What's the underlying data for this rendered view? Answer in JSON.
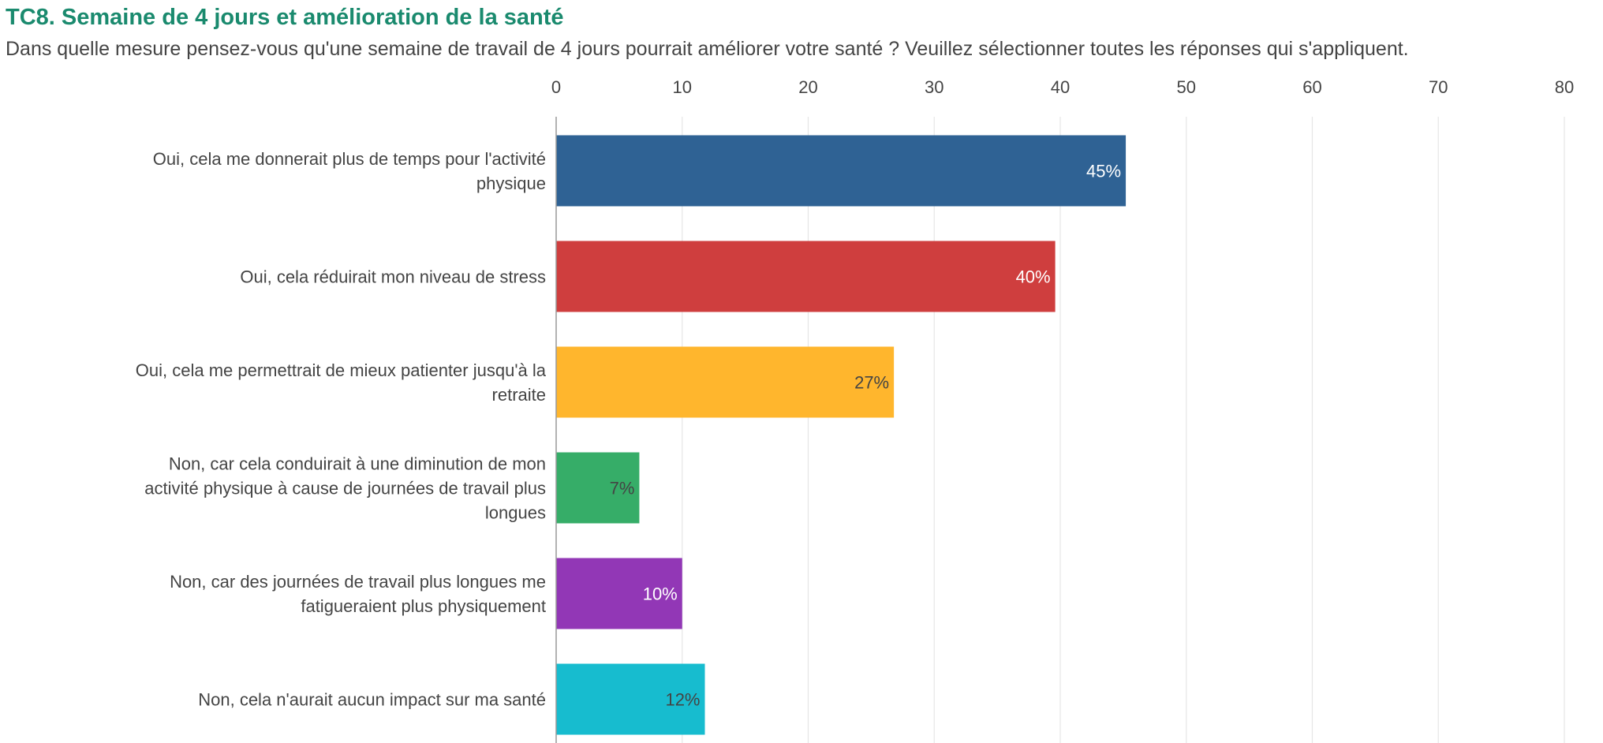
{
  "title": "TC8. Semaine de 4 jours et amélioration de la santé",
  "subtitle": "Dans quelle mesure pensez-vous qu'une semaine de travail de 4 jours pourrait améliorer votre santé ? Veuillez sélectionner toutes les réponses qui s'appliquent.",
  "chart_data": {
    "type": "bar",
    "orientation": "horizontal",
    "title": "TC8. Semaine de 4 jours et amélioration de la santé",
    "subtitle": "Dans quelle mesure pensez-vous qu'une semaine de travail de 4 jours pourrait améliorer votre santé ? Veuillez sélectionner toutes les réponses qui s'appliquent.",
    "xlim": [
      0,
      80
    ],
    "xticks": [
      0,
      10,
      20,
      30,
      40,
      50,
      60,
      70,
      80
    ],
    "xaxis_position": "top",
    "grid": true,
    "categories": [
      [
        "Oui, cela me donnerait plus de temps pour l'activité",
        "physique"
      ],
      [
        "Oui, cela réduirait mon niveau de stress"
      ],
      [
        "Oui, cela me permettrait de mieux patienter jusqu'à la",
        "retraite"
      ],
      [
        "Non, car cela conduirait à une diminution de mon",
        "activité physique à cause de journées de travail plus",
        "longues"
      ],
      [
        "Non, car des journées de travail plus longues me",
        "fatigueraient plus physiquement"
      ],
      [
        "Non, cela n'aurait aucun impact sur ma santé"
      ]
    ],
    "values": [
      45.2,
      39.6,
      26.8,
      6.6,
      10.0,
      11.8
    ],
    "data_labels": [
      "45%",
      "40%",
      "27%",
      "7%",
      "10%",
      "12%"
    ],
    "colors": [
      "#2f6294",
      "#cf3e3e",
      "#ffb62d",
      "#36ad68",
      "#9237b6",
      "#17bccf"
    ],
    "label_colors": [
      "#ffffff",
      "#ffffff",
      "#444444",
      "#444444",
      "#ffffff",
      "#444444"
    ]
  }
}
